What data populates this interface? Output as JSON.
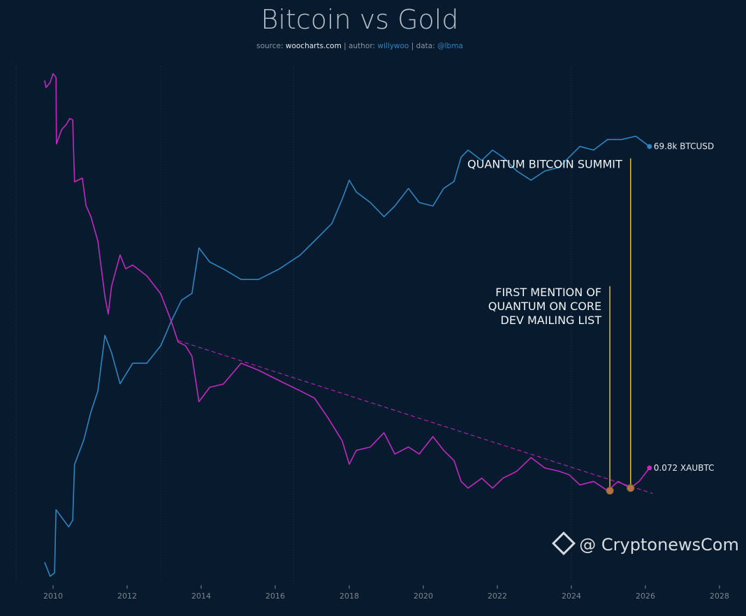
{
  "chart_data": {
    "type": "line",
    "title": "Bitcoin vs Gold",
    "subtitle": {
      "source_label": "source:",
      "source": "woocharts.com",
      "author_label": "| author:",
      "author": "willywoo",
      "data_label": "| data:",
      "data": "@lbma"
    },
    "x_ticks": [
      "2010",
      "2012",
      "2014",
      "2016",
      "2018",
      "2020",
      "2022",
      "2024",
      "2026",
      "2028"
    ],
    "xlim": [
      2009.5,
      2028.5
    ],
    "y_scale": "log",
    "grid": "vertical dotted",
    "series": [
      {
        "name": "BTCUSD",
        "color": "#2e86c1",
        "end_label": "69.8k BTCUSD",
        "ylim": [
          0.039,
          1100000
        ],
        "points": [
          [
            2009.77,
            0.078
          ],
          [
            2009.92,
            0.049
          ],
          [
            2010.04,
            0.055
          ],
          [
            2010.08,
            0.44
          ],
          [
            2010.42,
            0.25
          ],
          [
            2010.53,
            0.31
          ],
          [
            2010.58,
            1.95
          ],
          [
            2010.83,
            4.4
          ],
          [
            2011.02,
            11
          ],
          [
            2011.21,
            22
          ],
          [
            2011.4,
            138
          ],
          [
            2011.58,
            78
          ],
          [
            2011.81,
            28
          ],
          [
            2012.15,
            55
          ],
          [
            2012.53,
            55
          ],
          [
            2012.91,
            98
          ],
          [
            2013.19,
            220
          ],
          [
            2013.47,
            440
          ],
          [
            2013.75,
            550
          ],
          [
            2013.94,
            2460
          ],
          [
            2014.23,
            1550
          ],
          [
            2014.6,
            1230
          ],
          [
            2015.08,
            870
          ],
          [
            2015.55,
            870
          ],
          [
            2016.11,
            1230
          ],
          [
            2016.68,
            1950
          ],
          [
            2017.06,
            3100
          ],
          [
            2017.53,
            5500
          ],
          [
            2017.81,
            12300
          ],
          [
            2018.0,
            23000
          ],
          [
            2018.19,
            15600
          ],
          [
            2018.57,
            11000
          ],
          [
            2018.94,
            6900
          ],
          [
            2019.23,
            9800
          ],
          [
            2019.6,
            17500
          ],
          [
            2019.89,
            11000
          ],
          [
            2020.26,
            9800
          ],
          [
            2020.55,
            17500
          ],
          [
            2020.83,
            22000
          ],
          [
            2021.02,
            49000
          ],
          [
            2021.21,
            62000
          ],
          [
            2021.58,
            44000
          ],
          [
            2021.87,
            62000
          ],
          [
            2022.15,
            49000
          ],
          [
            2022.53,
            31000
          ],
          [
            2022.91,
            23000
          ],
          [
            2023.28,
            31000
          ],
          [
            2023.66,
            35000
          ],
          [
            2023.94,
            49000
          ],
          [
            2024.23,
            69800
          ],
          [
            2024.6,
            62000
          ],
          [
            2024.98,
            88000
          ],
          [
            2025.36,
            88000
          ],
          [
            2025.74,
            98000
          ],
          [
            2026.11,
            69800
          ]
        ]
      },
      {
        "name": "XAUBTC",
        "color": "#c02bbf",
        "end_label": "0.072 XAUBTC",
        "ylim": [
          0.00186,
          27500
        ],
        "points": [
          [
            2009.77,
            15800
          ],
          [
            2009.81,
            12600
          ],
          [
            2009.92,
            14800
          ],
          [
            2010.0,
            19500
          ],
          [
            2010.08,
            17400
          ],
          [
            2010.09,
            2100
          ],
          [
            2010.23,
            3300
          ],
          [
            2010.36,
            3900
          ],
          [
            2010.45,
            4700
          ],
          [
            2010.53,
            4500
          ],
          [
            2010.58,
            630
          ],
          [
            2010.79,
            710
          ],
          [
            2010.89,
            295
          ],
          [
            2011.02,
            210
          ],
          [
            2011.21,
            96
          ],
          [
            2011.4,
            16.6
          ],
          [
            2011.49,
            9.5
          ],
          [
            2011.58,
            23
          ],
          [
            2011.81,
            62
          ],
          [
            2011.96,
            40
          ],
          [
            2012.15,
            45
          ],
          [
            2012.53,
            32
          ],
          [
            2012.91,
            18
          ],
          [
            2013.19,
            7.6
          ],
          [
            2013.38,
            3.9
          ],
          [
            2013.57,
            3.5
          ],
          [
            2013.75,
            2.5
          ],
          [
            2013.94,
            0.59
          ],
          [
            2014.23,
            0.93
          ],
          [
            2014.6,
            1.03
          ],
          [
            2015.08,
            2.0
          ],
          [
            2015.55,
            1.6
          ],
          [
            2016.11,
            1.15
          ],
          [
            2016.68,
            0.83
          ],
          [
            2017.06,
            0.66
          ],
          [
            2017.43,
            0.35
          ],
          [
            2017.81,
            0.17
          ],
          [
            2018.0,
            0.081
          ],
          [
            2018.19,
            0.126
          ],
          [
            2018.57,
            0.14
          ],
          [
            2018.94,
            0.22
          ],
          [
            2019.23,
            0.112
          ],
          [
            2019.6,
            0.14
          ],
          [
            2019.89,
            0.112
          ],
          [
            2020.26,
            0.195
          ],
          [
            2020.55,
            0.126
          ],
          [
            2020.83,
            0.091
          ],
          [
            2021.02,
            0.047
          ],
          [
            2021.21,
            0.038
          ],
          [
            2021.58,
            0.052
          ],
          [
            2021.87,
            0.038
          ],
          [
            2022.15,
            0.052
          ],
          [
            2022.53,
            0.065
          ],
          [
            2022.91,
            0.1
          ],
          [
            2023.28,
            0.072
          ],
          [
            2023.66,
            0.065
          ],
          [
            2023.94,
            0.058
          ],
          [
            2024.23,
            0.042
          ],
          [
            2024.6,
            0.047
          ],
          [
            2024.98,
            0.035
          ],
          [
            2025.26,
            0.047
          ],
          [
            2025.6,
            0.038
          ],
          [
            2025.83,
            0.047
          ],
          [
            2026.11,
            0.072
          ]
        ]
      }
    ],
    "trendline": {
      "series": "XAUBTC",
      "style": "dashed",
      "from": [
        2013.38,
        4.1
      ],
      "to": [
        2026.2,
        0.032
      ]
    },
    "annotations": [
      {
        "lines": [
          "FIRST MENTION OF",
          "QUANTUM ON CORE",
          "DEV MAILING LIST"
        ],
        "x": 2025.04,
        "value": 0.035,
        "line_top_value": 23,
        "color": "#e0c04a"
      },
      {
        "lines": [
          "QUANTUM BITCOIN SUMMIT"
        ],
        "x": 2025.6,
        "value": 0.038,
        "line_top_value": 1330,
        "color": "#e0c04a"
      }
    ]
  },
  "watermark": "@ CryptonewsCom"
}
